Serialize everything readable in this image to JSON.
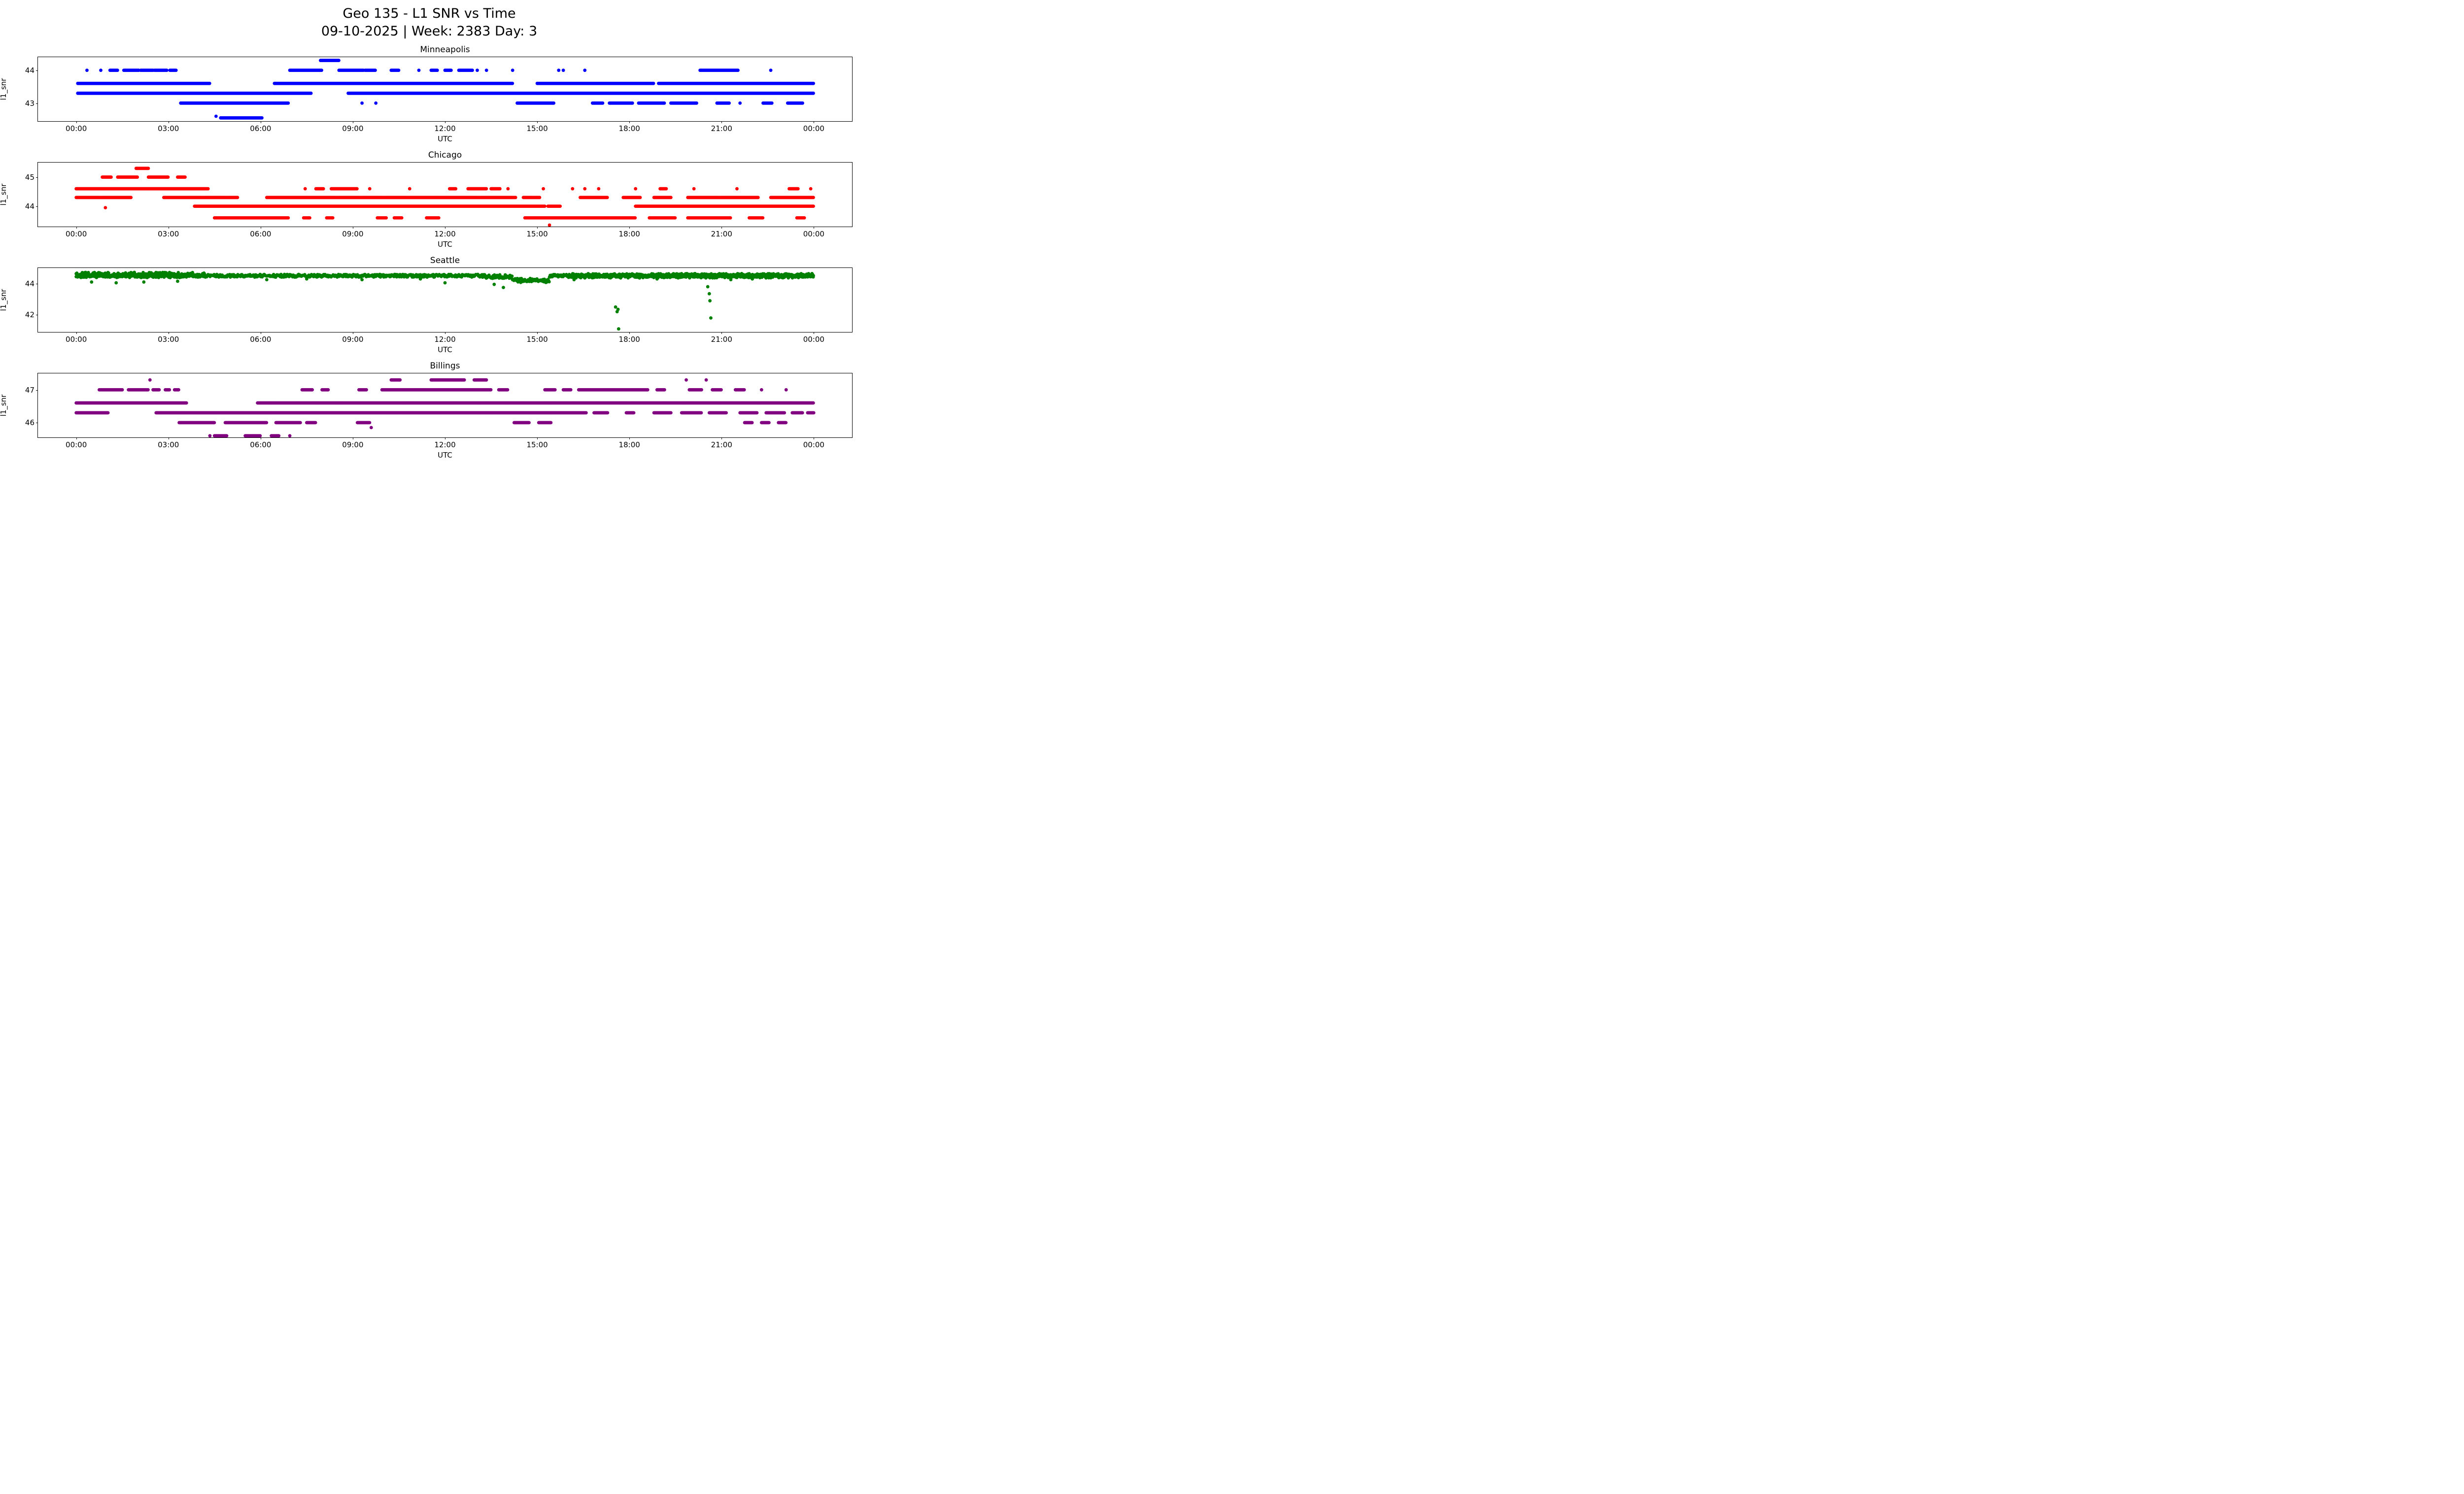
{
  "header": {
    "title": "Geo 135 - L1 SNR vs Time",
    "subtitle": "09-10-2025 | Week: 2383 Day: 3"
  },
  "chart_data": {
    "type": "scatter",
    "xlabel": "UTC",
    "ylabel": "l1_snr",
    "x_unit": "hours_utc",
    "xlim": [
      0,
      24
    ],
    "x_margin": 0.047,
    "grid": false,
    "legend": "none",
    "marker_radius": 3.4,
    "xticks": [
      {
        "t": 0,
        "label": "00:00"
      },
      {
        "t": 3,
        "label": "03:00"
      },
      {
        "t": 6,
        "label": "06:00"
      },
      {
        "t": 9,
        "label": "09:00"
      },
      {
        "t": 12,
        "label": "12:00"
      },
      {
        "t": 15,
        "label": "15:00"
      },
      {
        "t": 18,
        "label": "18:00"
      },
      {
        "t": 21,
        "label": "21:00"
      },
      {
        "t": 24,
        "label": "00:00"
      }
    ],
    "subplots": [
      {
        "title": "Minneapolis",
        "color": "#0000ff",
        "ylim": [
          42.45,
          44.4
        ],
        "yticks": [
          43,
          44
        ],
        "jitter": 0,
        "runs": [
          [
            44.3,
            7.95,
            8.55
          ],
          [
            44.0,
            1.1,
            1.35
          ],
          [
            44.0,
            1.55,
            2.05
          ],
          [
            44.0,
            2.1,
            2.5
          ],
          [
            44.0,
            2.55,
            2.95
          ],
          [
            44.0,
            3.05,
            3.25
          ],
          [
            44.0,
            6.95,
            8.0
          ],
          [
            44.0,
            8.55,
            9.35
          ],
          [
            44.0,
            9.4,
            9.75
          ],
          [
            44.0,
            10.25,
            10.5
          ],
          [
            44.0,
            11.55,
            11.75
          ],
          [
            44.0,
            12.0,
            12.2
          ],
          [
            44.0,
            12.45,
            12.9
          ],
          [
            44.0,
            20.3,
            21.55
          ],
          [
            43.6,
            0.05,
            4.35
          ],
          [
            43.6,
            6.45,
            14.2
          ],
          [
            43.6,
            15.0,
            18.8
          ],
          [
            43.6,
            18.95,
            24.0
          ],
          [
            43.3,
            0.05,
            7.65
          ],
          [
            43.3,
            8.85,
            24.0
          ],
          [
            43.0,
            3.4,
            6.9
          ],
          [
            43.0,
            14.35,
            15.55
          ],
          [
            43.0,
            16.8,
            17.15
          ],
          [
            43.0,
            17.35,
            18.1
          ],
          [
            43.0,
            18.3,
            19.15
          ],
          [
            43.0,
            19.35,
            20.2
          ],
          [
            43.0,
            20.85,
            21.25
          ],
          [
            43.0,
            22.35,
            22.65
          ],
          [
            43.0,
            23.15,
            23.65
          ],
          [
            42.55,
            4.7,
            6.05
          ]
        ],
        "points": [
          [
            0.35,
            44.0
          ],
          [
            0.8,
            44.0
          ],
          [
            11.15,
            44.0
          ],
          [
            13.05,
            44.0
          ],
          [
            13.35,
            44.0
          ],
          [
            14.2,
            44.0
          ],
          [
            15.7,
            44.0
          ],
          [
            15.85,
            44.0
          ],
          [
            16.55,
            44.0
          ],
          [
            22.6,
            44.0
          ],
          [
            9.3,
            43.0
          ],
          [
            9.75,
            43.0
          ],
          [
            21.6,
            43.0
          ],
          [
            4.55,
            42.6
          ]
        ]
      },
      {
        "title": "Chicago",
        "color": "#ff0000",
        "ylim": [
          43.3,
          45.5
        ],
        "yticks": [
          44,
          45
        ],
        "jitter": 0,
        "runs": [
          [
            45.3,
            1.95,
            2.35
          ],
          [
            45.0,
            0.85,
            1.15
          ],
          [
            45.0,
            1.35,
            2.0
          ],
          [
            45.0,
            2.35,
            3.0
          ],
          [
            45.0,
            3.3,
            3.55
          ],
          [
            44.6,
            0.0,
            4.3
          ],
          [
            44.6,
            7.8,
            8.05
          ],
          [
            44.6,
            8.3,
            9.15
          ],
          [
            44.6,
            12.15,
            12.35
          ],
          [
            44.6,
            12.75,
            13.35
          ],
          [
            44.6,
            13.5,
            13.8
          ],
          [
            44.6,
            19.0,
            19.2
          ],
          [
            44.6,
            23.2,
            23.5
          ],
          [
            44.3,
            0.0,
            1.8
          ],
          [
            44.3,
            2.85,
            5.25
          ],
          [
            44.3,
            6.2,
            14.3
          ],
          [
            44.3,
            14.55,
            15.1
          ],
          [
            44.3,
            16.4,
            17.3
          ],
          [
            44.3,
            17.8,
            18.35
          ],
          [
            44.3,
            18.8,
            19.35
          ],
          [
            44.3,
            19.9,
            22.2
          ],
          [
            44.3,
            22.6,
            24.0
          ],
          [
            44.0,
            3.85,
            15.25
          ],
          [
            44.0,
            15.35,
            15.75
          ],
          [
            44.0,
            18.2,
            24.0
          ],
          [
            43.6,
            4.5,
            6.9
          ],
          [
            43.6,
            7.4,
            7.6
          ],
          [
            43.6,
            8.15,
            8.35
          ],
          [
            43.6,
            9.8,
            10.1
          ],
          [
            43.6,
            10.35,
            10.6
          ],
          [
            43.6,
            11.4,
            11.8
          ],
          [
            43.6,
            14.6,
            18.2
          ],
          [
            43.6,
            18.65,
            19.5
          ],
          [
            43.6,
            19.9,
            21.3
          ],
          [
            43.6,
            21.9,
            22.35
          ],
          [
            43.6,
            23.45,
            23.7
          ]
        ],
        "points": [
          [
            7.45,
            44.6
          ],
          [
            9.55,
            44.6
          ],
          [
            10.85,
            44.6
          ],
          [
            14.05,
            44.6
          ],
          [
            15.2,
            44.6
          ],
          [
            16.15,
            44.6
          ],
          [
            16.55,
            44.6
          ],
          [
            17.0,
            44.6
          ],
          [
            18.2,
            44.6
          ],
          [
            20.1,
            44.6
          ],
          [
            21.5,
            44.6
          ],
          [
            23.9,
            44.6
          ],
          [
            0.95,
            43.95
          ],
          [
            15.4,
            43.35
          ]
        ]
      },
      {
        "title": "Seattle",
        "color": "#008000",
        "ylim": [
          40.9,
          45.0
        ],
        "yticks": [
          42,
          44
        ],
        "jitter": 0.05,
        "runs": [
          [
            44.5,
            0.0,
            13.3,
            0.09
          ],
          [
            44.55,
            0.0,
            4.2,
            0.17
          ],
          [
            44.45,
            13.3,
            14.2,
            0.12
          ],
          [
            44.2,
            14.2,
            15.4,
            0.13
          ],
          [
            44.5,
            15.4,
            24.0,
            0.09
          ],
          [
            44.5,
            16.0,
            24.0,
            0.14
          ]
        ],
        "points": [
          [
            0.5,
            44.1
          ],
          [
            1.3,
            44.05
          ],
          [
            2.2,
            44.1
          ],
          [
            3.3,
            44.15
          ],
          [
            6.2,
            44.25
          ],
          [
            7.5,
            44.3
          ],
          [
            9.3,
            44.25
          ],
          [
            11.2,
            44.3
          ],
          [
            12.0,
            44.05
          ],
          [
            13.6,
            43.95
          ],
          [
            13.9,
            43.75
          ],
          [
            16.2,
            44.25
          ],
          [
            18.9,
            44.3
          ],
          [
            21.3,
            44.25
          ],
          [
            22.0,
            44.3
          ],
          [
            17.55,
            42.5
          ],
          [
            17.6,
            42.2
          ],
          [
            17.63,
            42.35
          ],
          [
            17.65,
            41.1
          ],
          [
            20.55,
            43.8
          ],
          [
            20.6,
            43.35
          ],
          [
            20.62,
            42.9
          ],
          [
            20.65,
            41.8
          ]
        ]
      },
      {
        "title": "Billings",
        "color": "#800080",
        "ylim": [
          45.55,
          47.5
        ],
        "yticks": [
          46,
          47
        ],
        "jitter": 0,
        "runs": [
          [
            47.3,
            10.25,
            10.55
          ],
          [
            47.3,
            11.55,
            12.65
          ],
          [
            47.3,
            12.95,
            13.35
          ],
          [
            47.0,
            0.75,
            1.5
          ],
          [
            47.0,
            1.7,
            2.35
          ],
          [
            47.0,
            2.5,
            2.7
          ],
          [
            47.0,
            2.9,
            3.05
          ],
          [
            47.0,
            3.2,
            3.35
          ],
          [
            47.0,
            7.35,
            7.7
          ],
          [
            47.0,
            8.0,
            8.2
          ],
          [
            47.0,
            9.2,
            9.45
          ],
          [
            47.0,
            9.95,
            13.5
          ],
          [
            47.0,
            13.75,
            14.05
          ],
          [
            47.0,
            15.25,
            15.6
          ],
          [
            47.0,
            15.85,
            16.1
          ],
          [
            47.0,
            16.35,
            18.6
          ],
          [
            47.0,
            18.9,
            19.15
          ],
          [
            47.0,
            19.95,
            20.35
          ],
          [
            47.0,
            20.7,
            21.0
          ],
          [
            47.0,
            21.45,
            21.75
          ],
          [
            46.6,
            0.0,
            3.6
          ],
          [
            46.6,
            5.9,
            24.0
          ],
          [
            46.3,
            0.0,
            1.05
          ],
          [
            46.3,
            2.6,
            16.6
          ],
          [
            46.3,
            16.85,
            17.3
          ],
          [
            46.3,
            17.9,
            18.15
          ],
          [
            46.3,
            18.8,
            19.35
          ],
          [
            46.3,
            19.7,
            20.35
          ],
          [
            46.3,
            20.6,
            21.15
          ],
          [
            46.3,
            21.6,
            22.15
          ],
          [
            46.3,
            22.45,
            23.05
          ],
          [
            46.3,
            23.3,
            23.65
          ],
          [
            46.3,
            23.8,
            24.0
          ],
          [
            46.0,
            3.35,
            4.5
          ],
          [
            46.0,
            4.85,
            6.2
          ],
          [
            46.0,
            6.5,
            7.3
          ],
          [
            46.0,
            7.5,
            7.8
          ],
          [
            46.0,
            9.15,
            9.55
          ],
          [
            46.0,
            14.25,
            14.75
          ],
          [
            46.0,
            15.05,
            15.45
          ],
          [
            46.0,
            21.75,
            22.0
          ],
          [
            46.0,
            22.3,
            22.55
          ],
          [
            46.0,
            22.85,
            23.1
          ],
          [
            45.6,
            4.5,
            4.9
          ],
          [
            45.6,
            5.5,
            6.0
          ],
          [
            45.6,
            6.35,
            6.6
          ]
        ],
        "points": [
          [
            2.4,
            47.3
          ],
          [
            19.85,
            47.3
          ],
          [
            20.5,
            47.3
          ],
          [
            22.3,
            47.0
          ],
          [
            23.1,
            47.0
          ],
          [
            9.6,
            45.85
          ],
          [
            4.35,
            45.6
          ],
          [
            6.95,
            45.6
          ]
        ]
      }
    ]
  }
}
